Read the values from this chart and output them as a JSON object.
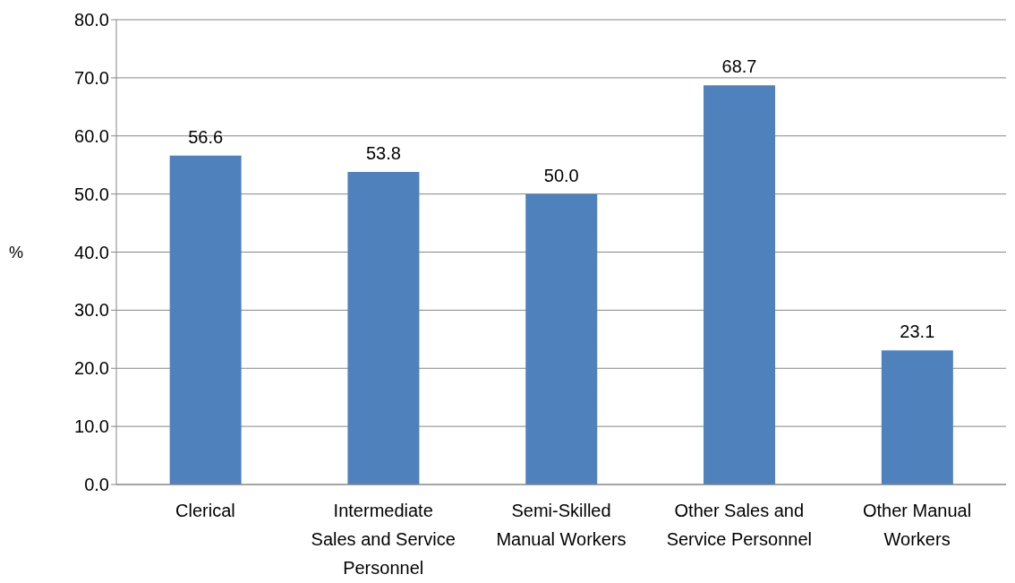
{
  "chart_data": {
    "type": "bar",
    "ylabel": "%",
    "categories": [
      "Clerical",
      "Intermediate Sales and Service Personnel",
      "Semi-Skilled Manual Workers",
      "Other Sales and Service Personnel",
      "Other Manual Workers"
    ],
    "values": [
      56.6,
      53.8,
      50.0,
      68.7,
      23.1
    ],
    "value_labels": [
      "56.6",
      "53.8",
      "50.0",
      "68.7",
      "23.1"
    ],
    "color": "#4f81bd",
    "ylim": [
      0,
      80
    ],
    "yticks": [
      {
        "value": 0,
        "label": "0.0"
      },
      {
        "value": 10,
        "label": "10.0"
      },
      {
        "value": 20,
        "label": "20.0"
      },
      {
        "value": 30,
        "label": "30.0"
      },
      {
        "value": 40,
        "label": "40.0"
      },
      {
        "value": 50,
        "label": "50.0"
      },
      {
        "value": 60,
        "label": "60.0"
      },
      {
        "value": 70,
        "label": "70.0"
      },
      {
        "value": 80,
        "label": "80.0"
      }
    ],
    "grid": "y",
    "legend": false
  }
}
